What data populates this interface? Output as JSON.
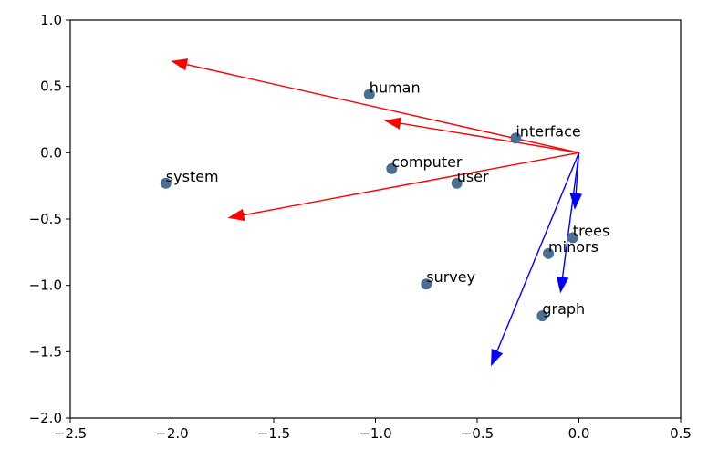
{
  "chart_data": {
    "type": "scatter",
    "xlim": [
      -2.5,
      0.5
    ],
    "ylim": [
      -2.0,
      1.0
    ],
    "xticks": [
      "−2.5",
      "−2.0",
      "−1.5",
      "−1.0",
      "−0.5",
      "0.0",
      "0.5"
    ],
    "yticks": [
      "1.0",
      "0.5",
      "0.0",
      "−0.5",
      "−1.0",
      "−1.5",
      "−2.0"
    ],
    "grid": false,
    "colors": {
      "point": "#4a6f92",
      "red_arrow": "#ff0000",
      "blue_arrow": "#0000ff",
      "axis": "#000000"
    },
    "points": [
      {
        "label": "human",
        "x": -1.03,
        "y": 0.44
      },
      {
        "label": "interface",
        "x": -0.31,
        "y": 0.11
      },
      {
        "label": "computer",
        "x": -0.92,
        "y": -0.12
      },
      {
        "label": "user",
        "x": -0.6,
        "y": -0.23
      },
      {
        "label": "system",
        "x": -2.03,
        "y": -0.23
      },
      {
        "label": "trees",
        "x": -0.03,
        "y": -0.64
      },
      {
        "label": "minors",
        "x": -0.15,
        "y": -0.76
      },
      {
        "label": "survey",
        "x": -0.75,
        "y": -0.99
      },
      {
        "label": "graph",
        "x": -0.18,
        "y": -1.23
      }
    ],
    "arrows_origin": [
      0.0,
      0.0
    ],
    "red_arrows": [
      {
        "x": -2.0,
        "y": 0.69
      },
      {
        "x": -0.95,
        "y": 0.24
      },
      {
        "x": -1.72,
        "y": -0.49
      }
    ],
    "blue_arrows": [
      {
        "x": -0.02,
        "y": -0.42
      },
      {
        "x": -0.09,
        "y": -1.05
      },
      {
        "x": -0.43,
        "y": -1.6
      }
    ]
  }
}
